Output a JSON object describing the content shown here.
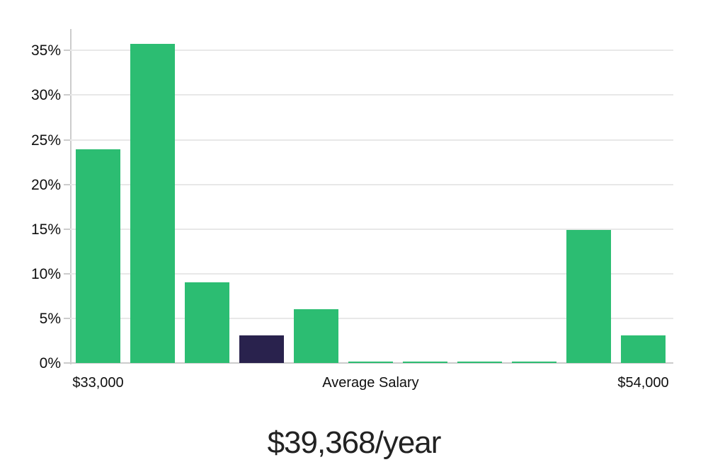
{
  "chart_data": {
    "type": "bar",
    "title": "",
    "xlabel": "",
    "ylabel": "",
    "values": [
      23.9,
      35.7,
      9.0,
      3.1,
      6.0,
      0.15,
      0.15,
      0.15,
      0.15,
      14.9,
      3.1
    ],
    "highlight_index": 3,
    "y_ticks": [
      {
        "value": 0,
        "label": "0%"
      },
      {
        "value": 5,
        "label": "5%"
      },
      {
        "value": 10,
        "label": "10%"
      },
      {
        "value": 15,
        "label": "15%"
      },
      {
        "value": 20,
        "label": "20%"
      },
      {
        "value": 25,
        "label": "25%"
      },
      {
        "value": 30,
        "label": "30%"
      },
      {
        "value": 35,
        "label": "35%"
      }
    ],
    "x_tick_labels": [
      {
        "bar_index": 0,
        "label": "$33,000"
      },
      {
        "bar_index": 5,
        "label": "Average Salary"
      },
      {
        "bar_index": 10,
        "label": "$54,000"
      }
    ],
    "ylim": [
      0,
      37.4
    ],
    "grid": "horizontal",
    "legend": "none",
    "colors": {
      "bar": "#2cbd72",
      "highlight_bar": "#29224d",
      "gridline": "#e8e8e8",
      "axis": "#cccccc",
      "tick_text": "#0f0f0f",
      "caption_text": "#222222"
    }
  },
  "footer": {
    "average_salary": "$39,368/year"
  }
}
